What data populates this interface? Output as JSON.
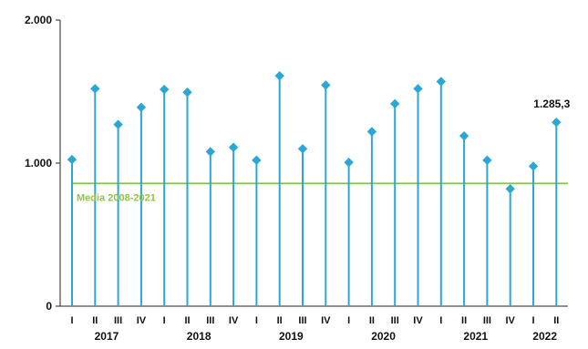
{
  "chart_data": {
    "type": "line",
    "style": "lollipop",
    "x": [
      "I",
      "II",
      "III",
      "IV",
      "I",
      "II",
      "III",
      "IV",
      "I",
      "II",
      "III",
      "IV",
      "I",
      "II",
      "III",
      "IV",
      "I",
      "II",
      "III",
      "IV",
      "I",
      "II"
    ],
    "years": [
      {
        "label": "2017",
        "quarters": 4
      },
      {
        "label": "2018",
        "quarters": 4
      },
      {
        "label": "2019",
        "quarters": 4
      },
      {
        "label": "2020",
        "quarters": 4
      },
      {
        "label": "2021",
        "quarters": 4
      },
      {
        "label": "2022",
        "quarters": 2
      }
    ],
    "values": [
      1025,
      1520,
      1270,
      1390,
      1515,
      1495,
      1080,
      1110,
      1020,
      1610,
      1100,
      1545,
      1005,
      1220,
      1415,
      1520,
      1570,
      1190,
      1020,
      820,
      978,
      1285.3
    ],
    "ylim": [
      0,
      2000
    ],
    "yticks": [
      0,
      1000,
      2000
    ],
    "ytick_labels": [
      "0",
      "1.000",
      "2.000"
    ],
    "average": {
      "label": "Media 2008-2021",
      "value": 858
    },
    "annotation": {
      "index": 21,
      "text": "1.285,3"
    },
    "grid": false,
    "colors": {
      "series": "#2aa7d6",
      "average": "#8dc63f",
      "axis": "#222222"
    }
  }
}
